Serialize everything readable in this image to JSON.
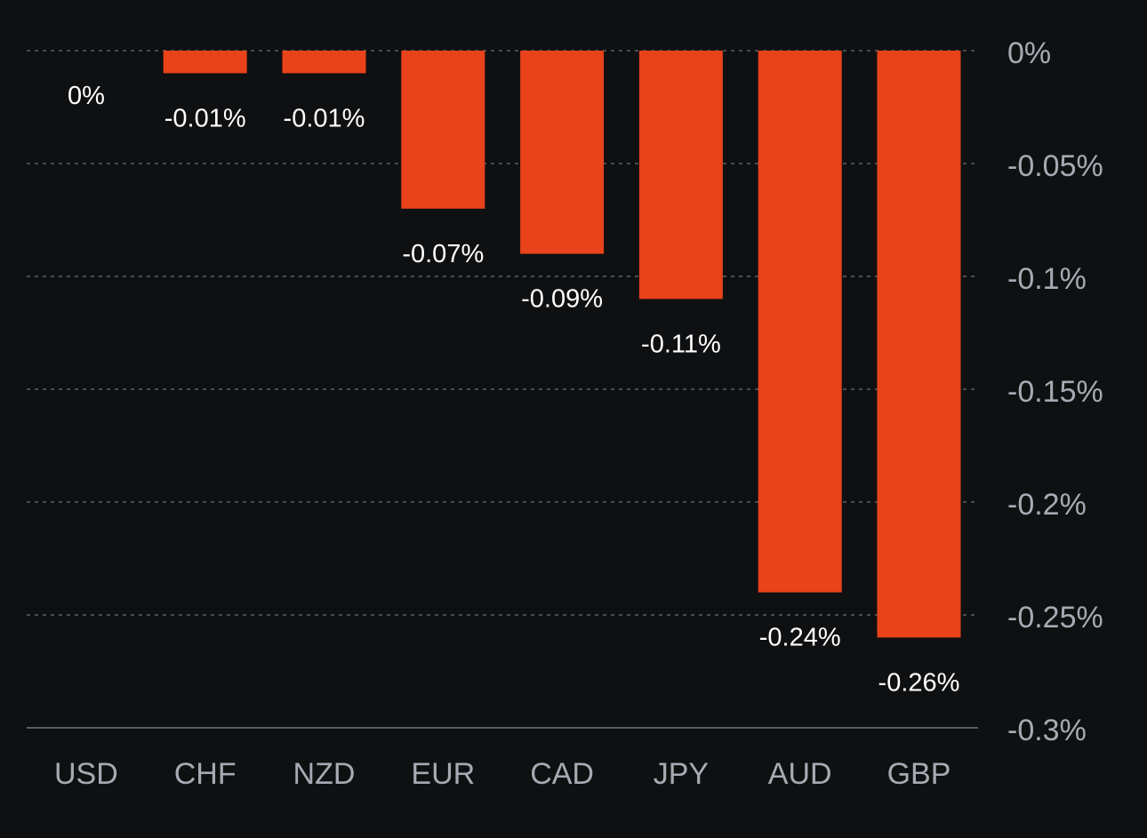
{
  "chart_data": {
    "type": "bar",
    "categories": [
      "USD",
      "CHF",
      "NZD",
      "EUR",
      "CAD",
      "JPY",
      "AUD",
      "GBP"
    ],
    "values": [
      0,
      -0.01,
      -0.01,
      -0.07,
      -0.09,
      -0.11,
      -0.24,
      -0.26
    ],
    "value_labels": [
      "0%",
      "-0.01%",
      "-0.01%",
      "-0.07%",
      "-0.09%",
      "-0.11%",
      "-0.24%",
      "-0.26%"
    ],
    "y_ticks": [
      0,
      -0.05,
      -0.1,
      -0.15,
      -0.2,
      -0.25,
      -0.3
    ],
    "y_tick_labels": [
      "0%",
      "-0.05%",
      "-0.1%",
      "-0.15%",
      "-0.2%",
      "-0.25%",
      "-0.3%"
    ],
    "ylim": [
      -0.3,
      0
    ],
    "y_axis_position": "right",
    "grid": true,
    "grid_style": "dashed",
    "legend": "none",
    "colors": {
      "background": "#0f1012",
      "bar": "#e8431a",
      "grid": "#4a4c52",
      "axis_line": "#5a5c62",
      "value_label": "#ffffff",
      "tick_label": "#a7aab3"
    }
  }
}
